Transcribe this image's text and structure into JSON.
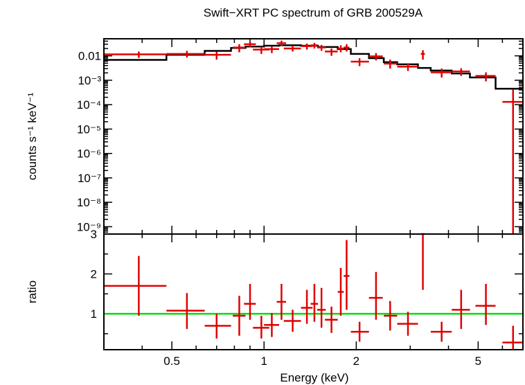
{
  "chart_data": {
    "type": "scatter",
    "title": "Swift−XRT PC spectrum of GRB 200529A",
    "xlabel": "Energy (keV)",
    "xscale": "log",
    "xlim": [
      0.3,
      7.0
    ],
    "x_ticks": [
      {
        "value": 0.5,
        "label": "0.5"
      },
      {
        "value": 1,
        "label": "1"
      },
      {
        "value": 2,
        "label": "2"
      },
      {
        "value": 5,
        "label": "5"
      }
    ],
    "colors": {
      "data": "#e00000",
      "model": "#000000",
      "unity": "#00e000"
    },
    "panels": [
      {
        "id": "spectrum",
        "ylabel": "counts s⁻¹ keV⁻¹",
        "yscale": "log",
        "ylim": [
          5e-10,
          0.05
        ],
        "y_ticks": [
          {
            "value": 0.01,
            "label": "0.01"
          },
          {
            "value": 0.001,
            "label": "10⁻³"
          },
          {
            "value": 0.0001,
            "label": "10⁻⁴"
          },
          {
            "value": 1e-05,
            "label": "10⁻⁵"
          },
          {
            "value": 1e-06,
            "label": "10⁻⁶"
          },
          {
            "value": 1e-07,
            "label": "10⁻⁷"
          },
          {
            "value": 1e-08,
            "label": "10⁻⁸"
          },
          {
            "value": 1e-09,
            "label": "10⁻⁹"
          }
        ],
        "series": [
          {
            "kind": "errorbars",
            "points": [
              {
                "x": 0.39,
                "xlo": 0.3,
                "xhi": 0.48,
                "y": 0.0115,
                "ylo": 0.0082,
                "yhi": 0.015
              },
              {
                "x": 0.56,
                "xlo": 0.48,
                "xhi": 0.64,
                "y": 0.012,
                "ylo": 0.0085,
                "yhi": 0.016
              },
              {
                "x": 0.7,
                "xlo": 0.64,
                "xhi": 0.78,
                "y": 0.011,
                "ylo": 0.007,
                "yhi": 0.015
              },
              {
                "x": 0.83,
                "xlo": 0.79,
                "xhi": 0.87,
                "y": 0.022,
                "ylo": 0.014,
                "yhi": 0.03
              },
              {
                "x": 0.9,
                "xlo": 0.86,
                "xhi": 0.94,
                "y": 0.03,
                "ylo": 0.022,
                "yhi": 0.038
              },
              {
                "x": 0.98,
                "xlo": 0.92,
                "xhi": 1.04,
                "y": 0.018,
                "ylo": 0.012,
                "yhi": 0.024
              },
              {
                "x": 1.06,
                "xlo": 1.0,
                "xhi": 1.12,
                "y": 0.019,
                "ylo": 0.013,
                "yhi": 0.025
              },
              {
                "x": 1.14,
                "xlo": 1.1,
                "xhi": 1.18,
                "y": 0.033,
                "ylo": 0.025,
                "yhi": 0.042
              },
              {
                "x": 1.24,
                "xlo": 1.16,
                "xhi": 1.32,
                "y": 0.02,
                "ylo": 0.015,
                "yhi": 0.026
              },
              {
                "x": 1.38,
                "xlo": 1.32,
                "xhi": 1.44,
                "y": 0.025,
                "ylo": 0.018,
                "yhi": 0.032
              },
              {
                "x": 1.46,
                "xlo": 1.42,
                "xhi": 1.5,
                "y": 0.027,
                "ylo": 0.02,
                "yhi": 0.034
              },
              {
                "x": 1.54,
                "xlo": 1.49,
                "xhi": 1.59,
                "y": 0.022,
                "ylo": 0.016,
                "yhi": 0.028
              },
              {
                "x": 1.66,
                "xlo": 1.58,
                "xhi": 1.74,
                "y": 0.015,
                "ylo": 0.01,
                "yhi": 0.02
              },
              {
                "x": 1.78,
                "xlo": 1.74,
                "xhi": 1.82,
                "y": 0.02,
                "ylo": 0.014,
                "yhi": 0.027
              },
              {
                "x": 1.86,
                "xlo": 1.82,
                "xhi": 1.9,
                "y": 0.022,
                "ylo": 0.015,
                "yhi": 0.03
              },
              {
                "x": 2.05,
                "xlo": 1.92,
                "xhi": 2.2,
                "y": 0.0058,
                "ylo": 0.0038,
                "yhi": 0.008
              },
              {
                "x": 2.32,
                "xlo": 2.2,
                "xhi": 2.44,
                "y": 0.0095,
                "ylo": 0.0065,
                "yhi": 0.013
              },
              {
                "x": 2.58,
                "xlo": 2.46,
                "xhi": 2.72,
                "y": 0.0048,
                "ylo": 0.003,
                "yhi": 0.007
              },
              {
                "x": 2.95,
                "xlo": 2.72,
                "xhi": 3.18,
                "y": 0.0036,
                "ylo": 0.0024,
                "yhi": 0.005
              },
              {
                "x": 3.3,
                "xlo": 3.25,
                "xhi": 3.35,
                "y": 0.012,
                "ylo": 0.007,
                "yhi": 0.017
              },
              {
                "x": 3.8,
                "xlo": 3.5,
                "xhi": 4.1,
                "y": 0.0021,
                "ylo": 0.0013,
                "yhi": 0.003
              },
              {
                "x": 4.4,
                "xlo": 4.1,
                "xhi": 4.7,
                "y": 0.0023,
                "ylo": 0.0015,
                "yhi": 0.0031
              },
              {
                "x": 5.3,
                "xlo": 4.9,
                "xhi": 5.7,
                "y": 0.0015,
                "ylo": 0.0009,
                "yhi": 0.0021
              },
              {
                "x": 6.5,
                "xlo": 6.0,
                "xhi": 7.0,
                "y": 0.00013,
                "ylo": 5e-10,
                "yhi": 0.00042
              }
            ]
          },
          {
            "kind": "step-model",
            "edges": [
              0.3,
              0.48,
              0.64,
              0.78,
              0.87,
              1.0,
              1.12,
              1.32,
              1.5,
              1.74,
              1.92,
              2.2,
              2.46,
              2.72,
              3.18,
              3.5,
              4.1,
              4.7,
              5.7,
              6.0,
              7.0
            ],
            "values": [
              0.0068,
              0.011,
              0.016,
              0.021,
              0.024,
              0.026,
              0.027,
              0.026,
              0.023,
              0.019,
              0.012,
              0.008,
              0.0055,
              0.0045,
              0.0032,
              0.0025,
              0.0019,
              0.0013,
              0.00045,
              0.00045
            ]
          }
        ]
      },
      {
        "id": "ratio",
        "ylabel": "ratio",
        "yscale": "linear",
        "ylim": [
          0.1,
          3.0
        ],
        "y_ticks": [
          {
            "value": 1,
            "label": "1"
          },
          {
            "value": 2,
            "label": "2"
          },
          {
            "value": 3,
            "label": "3"
          }
        ],
        "unity_line": 1,
        "series": [
          {
            "kind": "errorbars",
            "points": [
              {
                "x": 0.39,
                "xlo": 0.3,
                "xhi": 0.48,
                "y": 1.7,
                "ylo": 0.95,
                "yhi": 2.45
              },
              {
                "x": 0.56,
                "xlo": 0.48,
                "xhi": 0.64,
                "y": 1.08,
                "ylo": 0.62,
                "yhi": 1.52
              },
              {
                "x": 0.7,
                "xlo": 0.64,
                "xhi": 0.78,
                "y": 0.7,
                "ylo": 0.38,
                "yhi": 1.0
              },
              {
                "x": 0.83,
                "xlo": 0.79,
                "xhi": 0.87,
                "y": 0.95,
                "ylo": 0.45,
                "yhi": 1.45
              },
              {
                "x": 0.9,
                "xlo": 0.86,
                "xhi": 0.94,
                "y": 1.25,
                "ylo": 0.85,
                "yhi": 1.75
              },
              {
                "x": 0.98,
                "xlo": 0.92,
                "xhi": 1.04,
                "y": 0.65,
                "ylo": 0.38,
                "yhi": 0.95
              },
              {
                "x": 1.06,
                "xlo": 1.0,
                "xhi": 1.12,
                "y": 0.72,
                "ylo": 0.42,
                "yhi": 1.02
              },
              {
                "x": 1.14,
                "xlo": 1.1,
                "xhi": 1.18,
                "y": 1.3,
                "ylo": 0.85,
                "yhi": 1.75
              },
              {
                "x": 1.24,
                "xlo": 1.16,
                "xhi": 1.32,
                "y": 0.82,
                "ylo": 0.55,
                "yhi": 1.1
              },
              {
                "x": 1.38,
                "xlo": 1.32,
                "xhi": 1.44,
                "y": 1.15,
                "ylo": 0.75,
                "yhi": 1.6
              },
              {
                "x": 1.46,
                "xlo": 1.42,
                "xhi": 1.5,
                "y": 1.25,
                "ylo": 0.8,
                "yhi": 1.75
              },
              {
                "x": 1.54,
                "xlo": 1.49,
                "xhi": 1.59,
                "y": 1.1,
                "ylo": 0.65,
                "yhi": 1.65
              },
              {
                "x": 1.66,
                "xlo": 1.58,
                "xhi": 1.74,
                "y": 0.85,
                "ylo": 0.52,
                "yhi": 1.18
              },
              {
                "x": 1.78,
                "xlo": 1.74,
                "xhi": 1.82,
                "y": 1.55,
                "ylo": 0.95,
                "yhi": 2.15
              },
              {
                "x": 1.86,
                "xlo": 1.82,
                "xhi": 1.9,
                "y": 1.95,
                "ylo": 1.1,
                "yhi": 2.85
              },
              {
                "x": 2.05,
                "xlo": 1.92,
                "xhi": 2.2,
                "y": 0.55,
                "ylo": 0.3,
                "yhi": 0.8
              },
              {
                "x": 2.32,
                "xlo": 2.2,
                "xhi": 2.44,
                "y": 1.4,
                "ylo": 0.85,
                "yhi": 2.05
              },
              {
                "x": 2.58,
                "xlo": 2.46,
                "xhi": 2.72,
                "y": 0.95,
                "ylo": 0.58,
                "yhi": 1.32
              },
              {
                "x": 2.95,
                "xlo": 2.72,
                "xhi": 3.18,
                "y": 0.75,
                "ylo": 0.45,
                "yhi": 1.05
              },
              {
                "x": 3.3,
                "xlo": 3.25,
                "xhi": 3.35,
                "y": 3.0,
                "ylo": 1.6,
                "yhi": 3.0
              },
              {
                "x": 3.8,
                "xlo": 3.5,
                "xhi": 4.1,
                "y": 0.55,
                "ylo": 0.3,
                "yhi": 0.8
              },
              {
                "x": 4.4,
                "xlo": 4.1,
                "xhi": 4.7,
                "y": 1.1,
                "ylo": 0.62,
                "yhi": 1.6
              },
              {
                "x": 5.3,
                "xlo": 4.9,
                "xhi": 5.7,
                "y": 1.2,
                "ylo": 0.72,
                "yhi": 1.75
              },
              {
                "x": 6.5,
                "xlo": 6.0,
                "xhi": 7.0,
                "y": 0.28,
                "ylo": 0.1,
                "yhi": 0.7
              }
            ]
          }
        ]
      }
    ]
  }
}
